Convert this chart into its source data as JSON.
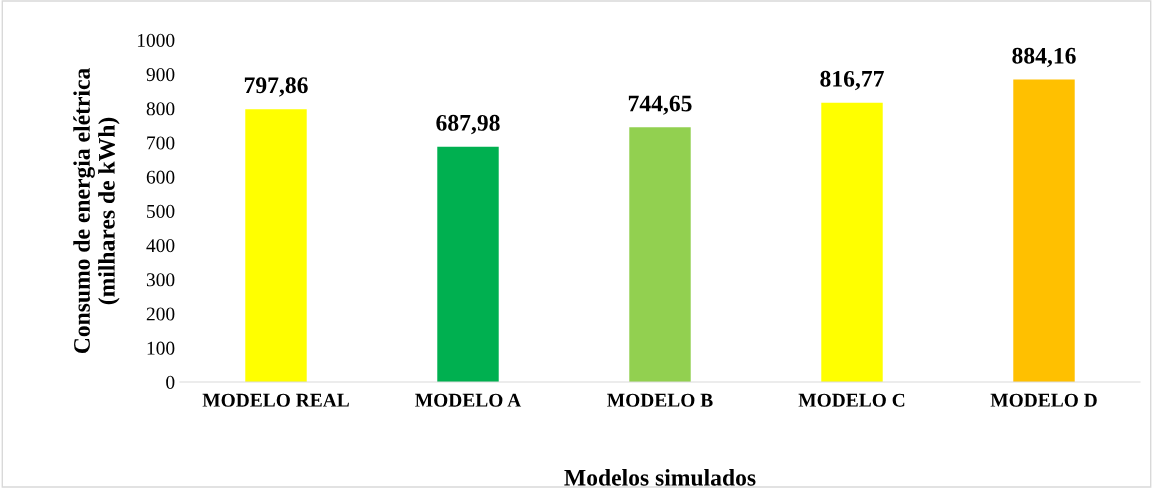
{
  "chart_data": {
    "type": "bar",
    "categories": [
      "MODELO REAL",
      "MODELO A",
      "MODELO B",
      "MODELO C",
      "MODELO D"
    ],
    "values": [
      797.86,
      687.98,
      744.65,
      816.77,
      884.16
    ],
    "colors": [
      "#ffff00",
      "#00b050",
      "#92d050",
      "#ffff00",
      "#ffc000"
    ],
    "value_labels": [
      "797,86",
      "687,98",
      "744,65",
      "816,77",
      "884,16"
    ],
    "xlabel": "Modelos simulados",
    "ylabel": "Consumo de energia elétrica\n(milhares de kWh)",
    "ylim": [
      0,
      1000
    ],
    "yticks": [
      0,
      100,
      200,
      300,
      400,
      500,
      600,
      700,
      800,
      900,
      1000
    ],
    "grid": false,
    "legend": false
  }
}
